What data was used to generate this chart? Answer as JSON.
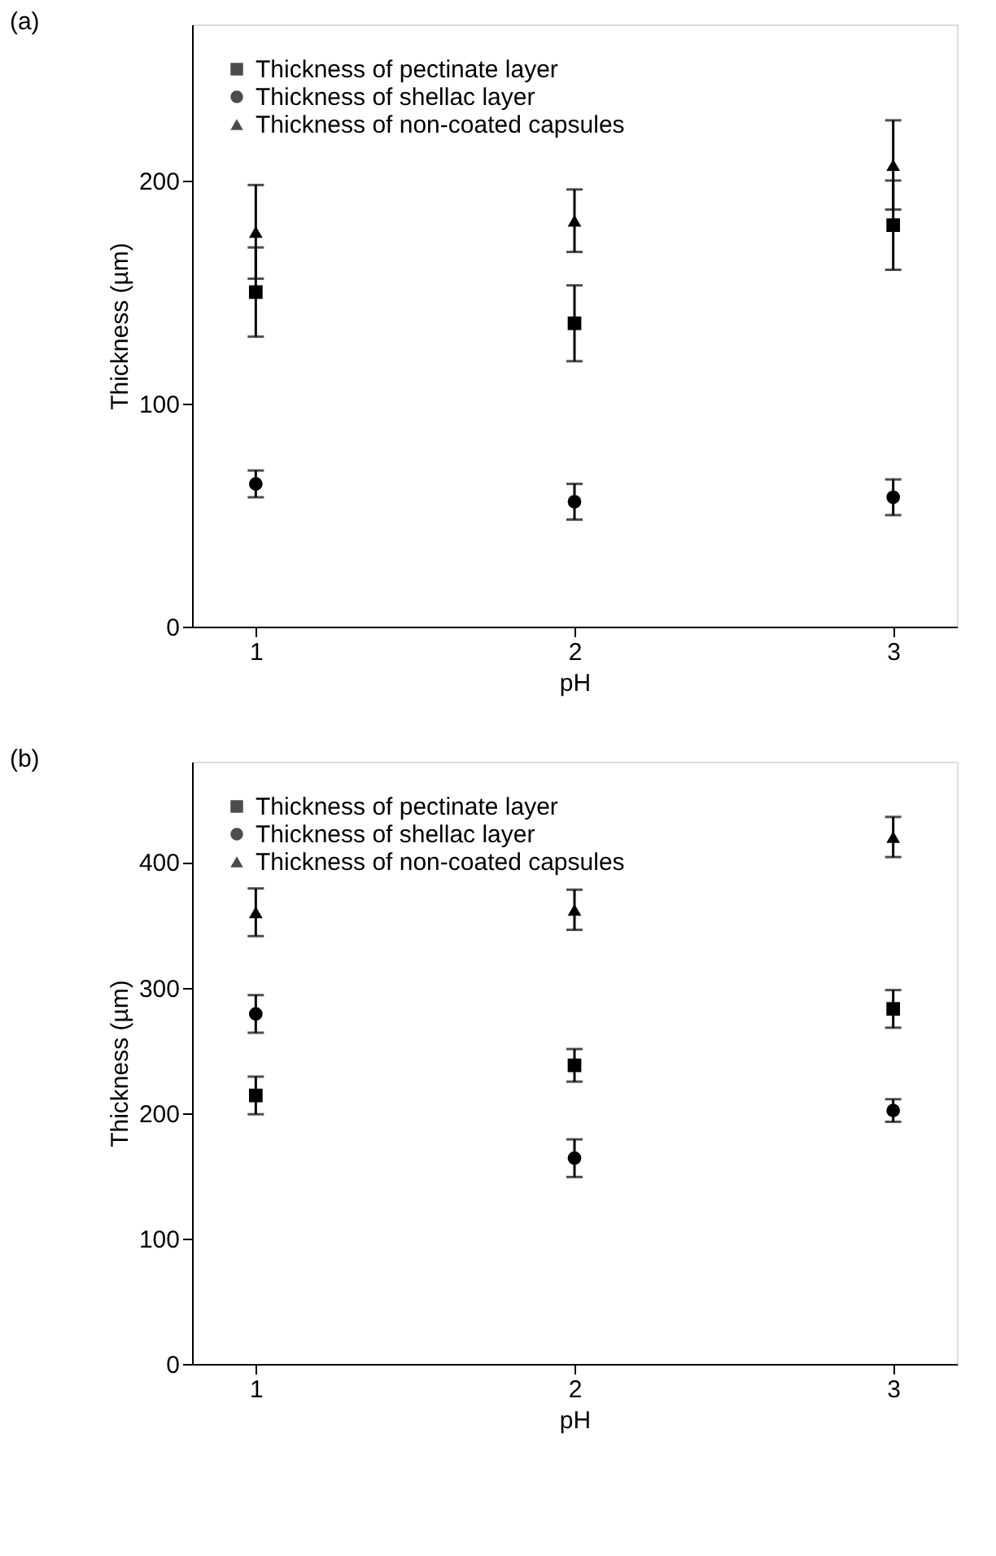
{
  "chart_data": [
    {
      "type": "scatter",
      "title": "(a)",
      "xlabel": "pH",
      "ylabel": "Thickness (µm)",
      "x": [
        1,
        2,
        3
      ],
      "xlim": [
        0.8,
        3.2
      ],
      "xticks": [
        1,
        2,
        3
      ],
      "ylim": [
        0,
        270
      ],
      "yticks": [
        0,
        100,
        200
      ],
      "grid": false,
      "legend": "top left",
      "series": [
        {
          "name": "Thickness of pectinate layer",
          "color": "#000000",
          "marker": "square",
          "values": [
            150,
            136,
            180
          ],
          "errors": [
            20,
            17,
            20
          ]
        },
        {
          "name": "Thickness of shellac layer",
          "color": "#000000",
          "marker": "circle",
          "values": [
            64,
            56,
            58
          ],
          "errors": [
            6,
            8,
            8
          ]
        },
        {
          "name": "Thickness of non-coated capsules",
          "color": "#000000",
          "marker": "triangle",
          "values": [
            177,
            182,
            207
          ],
          "errors": [
            21,
            14,
            20
          ]
        }
      ]
    },
    {
      "type": "scatter",
      "title": "(b)",
      "xlabel": "pH",
      "ylabel": "Thickness (µm)",
      "x": [
        1,
        2,
        3
      ],
      "xlim": [
        0.8,
        3.2
      ],
      "xticks": [
        1,
        2,
        3
      ],
      "ylim": [
        0,
        480
      ],
      "yticks": [
        0,
        100,
        200,
        300,
        400
      ],
      "grid": false,
      "legend": "top left",
      "series": [
        {
          "name": "Thickness of pectinate layer",
          "color": "#000000",
          "marker": "square",
          "values": [
            214,
            238,
            283
          ],
          "errors": [
            15,
            13,
            15
          ]
        },
        {
          "name": "Thickness of shellac layer",
          "color": "#000000",
          "marker": "circle",
          "values": [
            279,
            164,
            202
          ],
          "errors": [
            15,
            15,
            9
          ]
        },
        {
          "name": "Thickness of non-coated capsules",
          "color": "#000000",
          "marker": "triangle",
          "values": [
            360,
            362,
            420
          ],
          "errors": [
            19,
            16,
            16
          ]
        }
      ]
    }
  ]
}
